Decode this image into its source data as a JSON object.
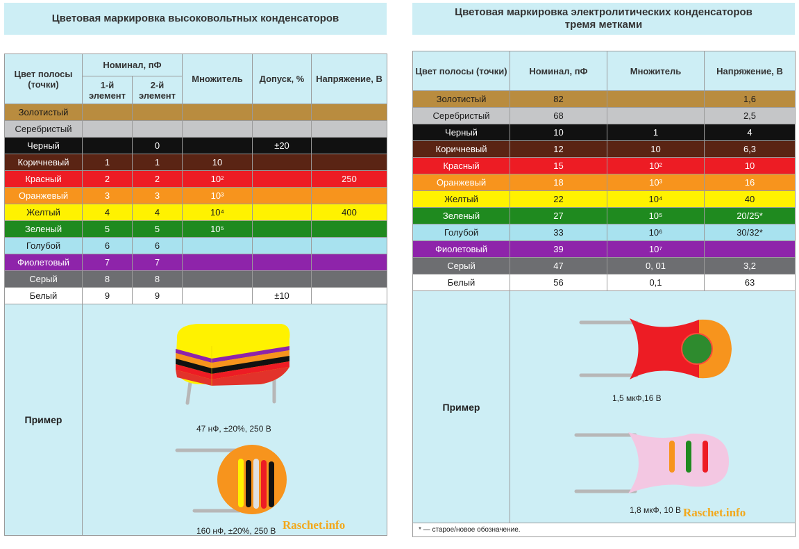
{
  "left": {
    "title": "Цветовая маркировка высоковольтных конденсаторов",
    "headers": {
      "color": "Цвет полосы (точки)",
      "nominal": "Номинал, пФ",
      "el1": "1-й элемент",
      "el2": "2-й элемент",
      "mult": "Множитель",
      "tol": "Допуск, %",
      "volt": "Напряжение, В"
    },
    "rows": [
      {
        "name": "Золотистый",
        "e1": "",
        "e2": "",
        "m": "",
        "t": "",
        "v": ""
      },
      {
        "name": "Серебристый",
        "e1": "",
        "e2": "",
        "m": "",
        "t": "",
        "v": ""
      },
      {
        "name": "Черный",
        "e1": "",
        "e2": "0",
        "m": "",
        "t": "±20",
        "v": ""
      },
      {
        "name": "Коричневый",
        "e1": "1",
        "e2": "1",
        "m": "10",
        "t": "",
        "v": ""
      },
      {
        "name": "Красный",
        "e1": "2",
        "e2": "2",
        "m": "10²",
        "t": "",
        "v": "250"
      },
      {
        "name": "Оранжевый",
        "e1": "3",
        "e2": "3",
        "m": "10³",
        "t": "",
        "v": ""
      },
      {
        "name": "Желтый",
        "e1": "4",
        "e2": "4",
        "m": "10⁴",
        "t": "",
        "v": "400"
      },
      {
        "name": "Зеленый",
        "e1": "5",
        "e2": "5",
        "m": "10⁵",
        "t": "",
        "v": ""
      },
      {
        "name": "Голубой",
        "e1": "6",
        "e2": "6",
        "m": "",
        "t": "",
        "v": ""
      },
      {
        "name": "Фиолетовый",
        "e1": "7",
        "e2": "7",
        "m": "",
        "t": "",
        "v": ""
      },
      {
        "name": "Серый",
        "e1": "8",
        "e2": "8",
        "m": "",
        "t": "",
        "v": ""
      },
      {
        "name": "Белый",
        "e1": "9",
        "e2": "9",
        "m": "",
        "t": "±10",
        "v": ""
      }
    ],
    "example_label": "Пример",
    "caption1": "47 нФ, ±20%, 250 В",
    "caption2": "160 нФ, ±20%, 250 В",
    "watermark": "Raschet.info"
  },
  "right": {
    "title_line1": "Цветовая маркировка электролитических конденсаторов",
    "title_line2": "тремя метками",
    "headers": {
      "color": "Цвет полосы (точки)",
      "nominal": "Номинал, пФ",
      "mult": "Множитель",
      "volt": "Напряжение, В"
    },
    "rows": [
      {
        "name": "Золотистый",
        "n": "82",
        "m": "",
        "v": "1,6"
      },
      {
        "name": "Серебристый",
        "n": "68",
        "m": "",
        "v": "2,5"
      },
      {
        "name": "Черный",
        "n": "10",
        "m": "1",
        "v": "4"
      },
      {
        "name": "Коричневый",
        "n": "12",
        "m": "10",
        "v": "6,3"
      },
      {
        "name": "Красный",
        "n": "15",
        "m": "10²",
        "v": "10"
      },
      {
        "name": "Оранжевый",
        "n": "18",
        "m": "10³",
        "v": "16"
      },
      {
        "name": "Желтый",
        "n": "22",
        "m": "10⁴",
        "v": "40"
      },
      {
        "name": "Зеленый",
        "n": "27",
        "m": "10⁵",
        "v": "20/25*"
      },
      {
        "name": "Голубой",
        "n": "33",
        "m": "10⁶",
        "v": "30/32*"
      },
      {
        "name": "Фиолетовый",
        "n": "39",
        "m": "10⁷",
        "v": ""
      },
      {
        "name": "Серый",
        "n": "47",
        "m": "0, 01",
        "v": "3,2"
      },
      {
        "name": "Белый",
        "n": "56",
        "m": "0,1",
        "v": "63"
      }
    ],
    "example_label": "Пример",
    "caption1": "1,5 мкФ,16 В",
    "caption2": "1,8 мкФ, 10 В",
    "watermark": "Raschet.info",
    "footnote": "* — старое/новое обозначение."
  },
  "colors": {
    "header_bg": "#cdeef5",
    "gold": "#b98c3f",
    "silver": "#c5c6c8",
    "black": "#111111",
    "brown": "#5a2414",
    "red": "#ed1c24",
    "orange": "#f7941d",
    "yellow": "#fff200",
    "green": "#1f8a1f",
    "lightblue": "#a8e2ef",
    "violet": "#8e24aa",
    "gray": "#6d6e71",
    "white": "#ffffff"
  }
}
